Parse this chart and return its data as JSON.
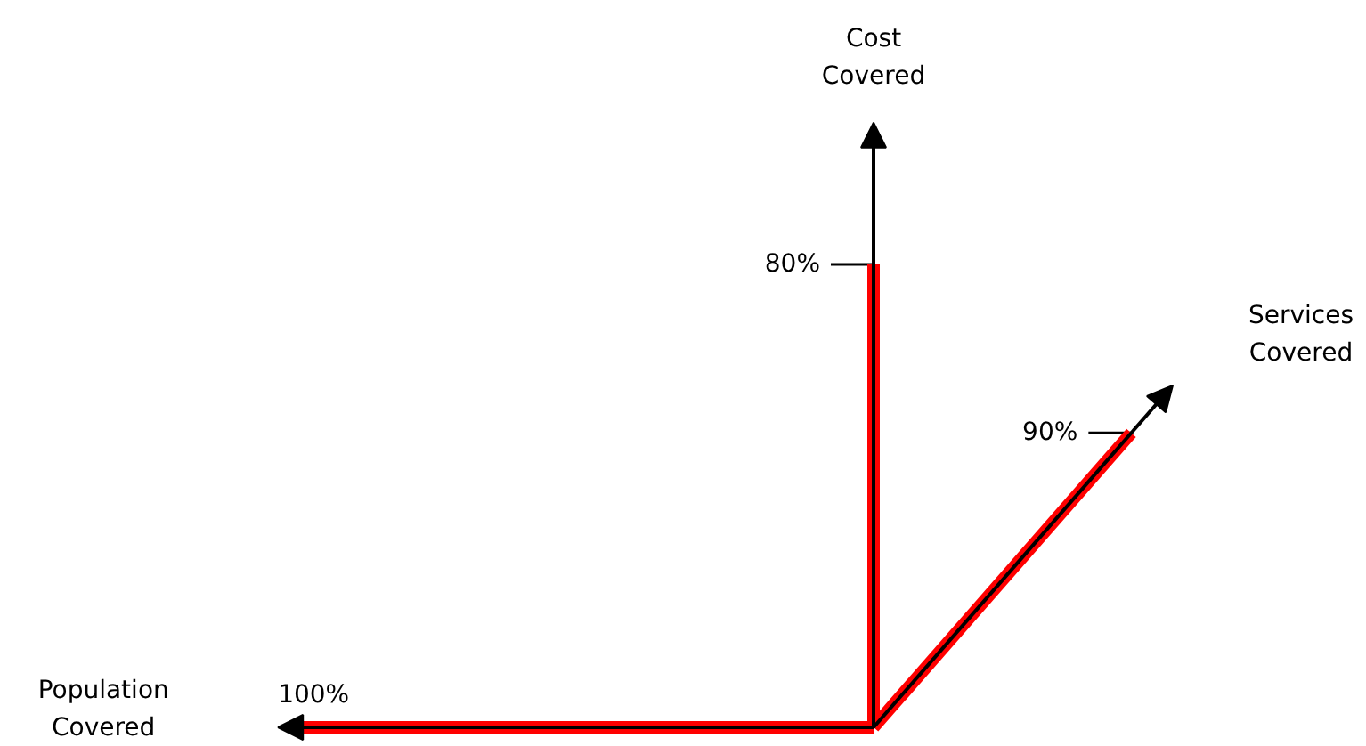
{
  "chart_data": {
    "type": "other",
    "categories": [
      "Cost Covered",
      "Services Covered",
      "Population Covered"
    ],
    "values": [
      80,
      90,
      100
    ],
    "value_labels": [
      "80%",
      "90%",
      "100%"
    ],
    "color": "#ff0000"
  }
}
